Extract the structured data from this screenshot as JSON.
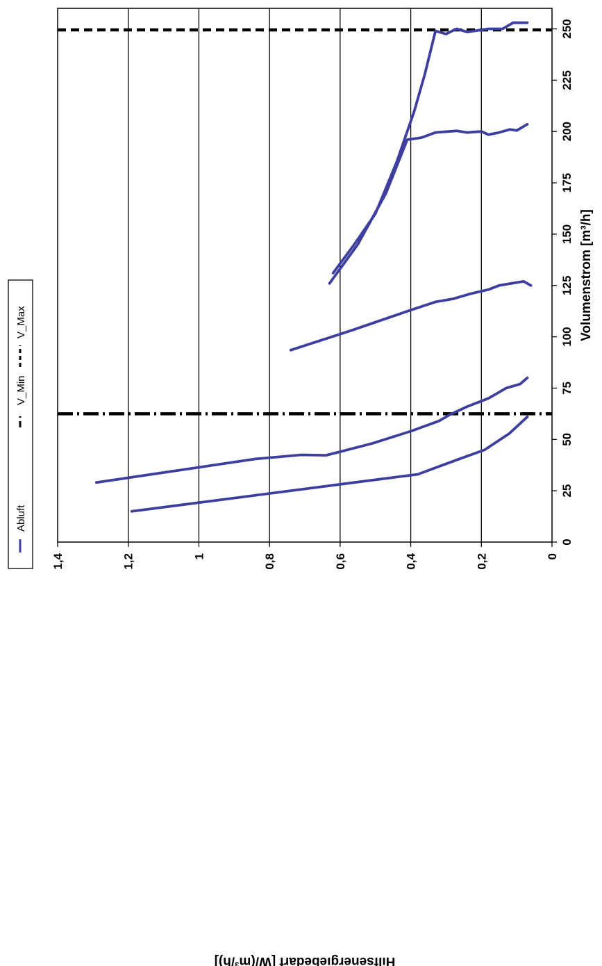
{
  "chart_data": {
    "type": "line",
    "orientation": "rotated-90-clockwise",
    "xlabel": "Volumenstrom [m³/h]",
    "ylabel": "Hilfsenergiebedarf [W/(m³/h)]",
    "xlim": [
      0,
      260
    ],
    "ylim": [
      0,
      1.4
    ],
    "x_ticks": [
      "0",
      "25",
      "50",
      "75",
      "100",
      "125",
      "150",
      "175",
      "200",
      "225",
      "250"
    ],
    "y_ticks": [
      "0",
      "0,2",
      "0,4",
      "0,6",
      "0,8",
      "1",
      "1,2",
      "1,4"
    ],
    "grid": "horizontal-major",
    "legend_position": "top",
    "legend": [
      {
        "label": "Abluft",
        "style": "solid",
        "color": "#3d3f9e"
      },
      {
        "label": "V_Min",
        "style": "dash-dot",
        "color": "#000000"
      },
      {
        "label": "V_Max",
        "style": "dashed",
        "color": "#000000"
      }
    ],
    "reference_lines": [
      {
        "name": "V_Min",
        "x": 62.5,
        "style": "dash-dot"
      },
      {
        "name": "V_Max",
        "x": 249.5,
        "style": "dashed"
      }
    ],
    "series": [
      {
        "color": "#3d3f9e",
        "points": [
          [
            15,
            1.19
          ],
          [
            33,
            0.38
          ],
          [
            40,
            0.27
          ],
          [
            45,
            0.19
          ],
          [
            53,
            0.12
          ],
          [
            61,
            0.07
          ]
        ]
      },
      {
        "color": "#3d3f9e",
        "points": [
          [
            29,
            1.29
          ],
          [
            40.5,
            0.84
          ],
          [
            42.5,
            0.71
          ],
          [
            42.3,
            0.64
          ],
          [
            44,
            0.6
          ],
          [
            48,
            0.51
          ],
          [
            54,
            0.4
          ],
          [
            59,
            0.32
          ],
          [
            62,
            0.29
          ],
          [
            66,
            0.24
          ],
          [
            70,
            0.18
          ],
          [
            75,
            0.13
          ],
          [
            77,
            0.09
          ],
          [
            80,
            0.07
          ]
        ]
      },
      {
        "color": "#3d3f9e",
        "points": [
          [
            93.5,
            0.74
          ],
          [
            103,
            0.57
          ],
          [
            113,
            0.4
          ],
          [
            117,
            0.33
          ],
          [
            118.5,
            0.28
          ],
          [
            121,
            0.23
          ],
          [
            123,
            0.18
          ],
          [
            125,
            0.15
          ],
          [
            127,
            0.08
          ],
          [
            125,
            0.06
          ]
        ]
      },
      {
        "color": "#3d3f9e",
        "points": [
          [
            126,
            0.63
          ],
          [
            145,
            0.55
          ],
          [
            170,
            0.47
          ],
          [
            196,
            0.41
          ],
          [
            197,
            0.37
          ],
          [
            199.5,
            0.33
          ],
          [
            200.3,
            0.27
          ],
          [
            199.5,
            0.24
          ],
          [
            200,
            0.2
          ],
          [
            198.5,
            0.18
          ],
          [
            199.5,
            0.15
          ],
          [
            201,
            0.12
          ],
          [
            200.5,
            0.1
          ],
          [
            203.5,
            0.07
          ]
        ]
      },
      {
        "color": "#3d3f9e",
        "points": [
          [
            131,
            0.62
          ],
          [
            145,
            0.56
          ],
          [
            160,
            0.5
          ],
          [
            185,
            0.44
          ],
          [
            210,
            0.39
          ],
          [
            228,
            0.36
          ],
          [
            249,
            0.33
          ],
          [
            247.5,
            0.3
          ],
          [
            250,
            0.27
          ],
          [
            248.5,
            0.24
          ],
          [
            250,
            0.18
          ],
          [
            250,
            0.14
          ],
          [
            253,
            0.11
          ],
          [
            253,
            0.07
          ]
        ]
      }
    ]
  }
}
